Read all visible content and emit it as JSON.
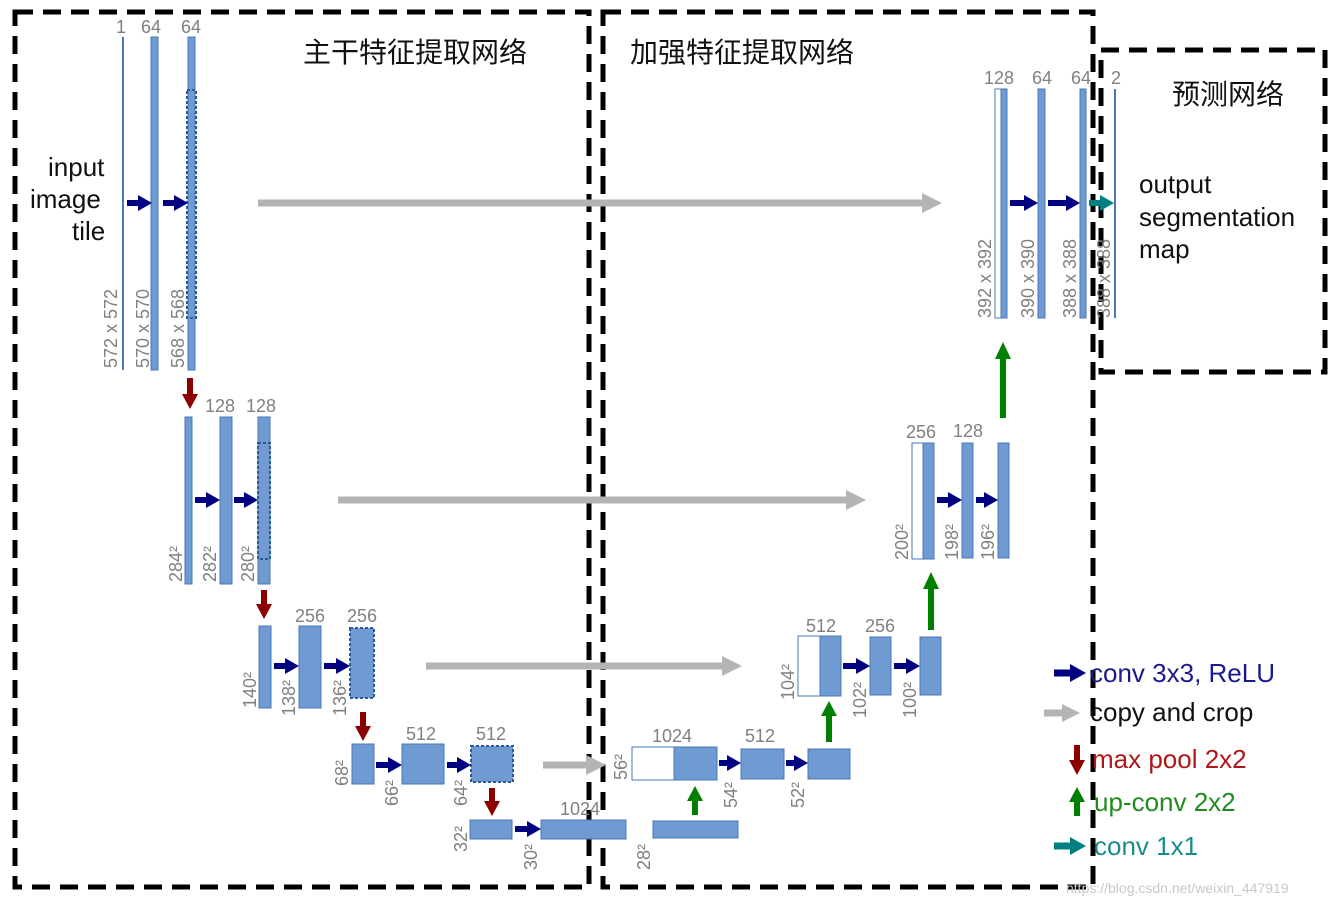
{
  "sections": {
    "backbone": "主干特征提取网络",
    "enhance": "加强特征提取网络",
    "predict": "预测网络"
  },
  "input_label": [
    "input",
    "image",
    "tile"
  ],
  "output_label": [
    "output",
    "segmentation",
    "map"
  ],
  "channels": {
    "l1": [
      "1",
      "64",
      "64"
    ],
    "l2": [
      "128",
      "128"
    ],
    "l3": [
      "256",
      "256"
    ],
    "l4": [
      "512",
      "512"
    ],
    "bottom": "1024",
    "u4": [
      "1024",
      "512"
    ],
    "u3": [
      "512",
      "256"
    ],
    "u2": [
      "256",
      "128"
    ],
    "u1": [
      "128",
      "64",
      "64",
      "2"
    ]
  },
  "sizes": {
    "l1": [
      "572 x 572",
      "570 x 570",
      "568 x 568"
    ],
    "l2": [
      "284²",
      "282²",
      "280²"
    ],
    "l3": [
      "140²",
      "138²",
      "136²"
    ],
    "l4": [
      "68²",
      "66²",
      "64²"
    ],
    "bottom": [
      "32²",
      "30²",
      "28²"
    ],
    "u4": [
      "56²",
      "54²",
      "52²"
    ],
    "u3": [
      "104²",
      "102²",
      "100²"
    ],
    "u2": [
      "200²",
      "198²",
      "196²"
    ],
    "u1": [
      "392 x 392",
      "390 x 390",
      "388 x 388",
      "388 x 388"
    ]
  },
  "legend": [
    {
      "label": "conv 3x3, ReLU",
      "color": "#1a1a8c",
      "arrow": "right"
    },
    {
      "label": "copy and crop",
      "color": "#111111",
      "arrow": "right",
      "arrow_color": "#b4b4b4"
    },
    {
      "label": "max pool 2x2",
      "color": "#b01818",
      "arrow": "down",
      "arrow_color": "#8b0000"
    },
    {
      "label": "up-conv 2x2",
      "color": "#1e8c1e",
      "arrow": "up",
      "arrow_color": "#1e8c1e"
    },
    {
      "label": "conv 1x1",
      "color": "#1a8c8c",
      "arrow": "right",
      "arrow_color": "#1a8c8c"
    }
  ],
  "watermark": "https://blog.csdn.net/weixin_447919",
  "colors": {
    "block": "#6f9ad2",
    "block_edge": "#4a78b8",
    "conv_arrow": "#000080",
    "pool_arrow": "#8b0000",
    "up_arrow": "#008000",
    "copy_arrow": "#b4b4b4",
    "conv1x1_arrow": "#008080"
  }
}
